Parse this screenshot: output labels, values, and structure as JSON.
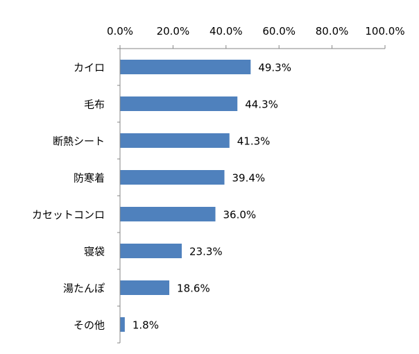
{
  "chart_data": {
    "type": "bar",
    "orientation": "horizontal",
    "categories": [
      "カイロ",
      "毛布",
      "断熱シート",
      "防寒着",
      "カセットコンロ",
      "寝袋",
      "湯たんぽ",
      "その他"
    ],
    "values": [
      49.3,
      44.3,
      41.3,
      39.4,
      36.0,
      23.3,
      18.6,
      1.8
    ],
    "data_labels": [
      "49.3%",
      "44.3%",
      "41.3%",
      "39.4%",
      "36.0%",
      "23.3%",
      "18.6%",
      "1.8%"
    ],
    "x_ticks": [
      0,
      20,
      40,
      60,
      80,
      100
    ],
    "x_tick_labels": [
      "0.0%",
      "20.0%",
      "40.0%",
      "60.0%",
      "80.0%",
      "100.0%"
    ],
    "xlim": [
      0,
      100
    ],
    "x_axis_position": "top",
    "grid": false,
    "legend": "none",
    "bar_color": "#4f81bd",
    "axis_color": "#868686"
  }
}
